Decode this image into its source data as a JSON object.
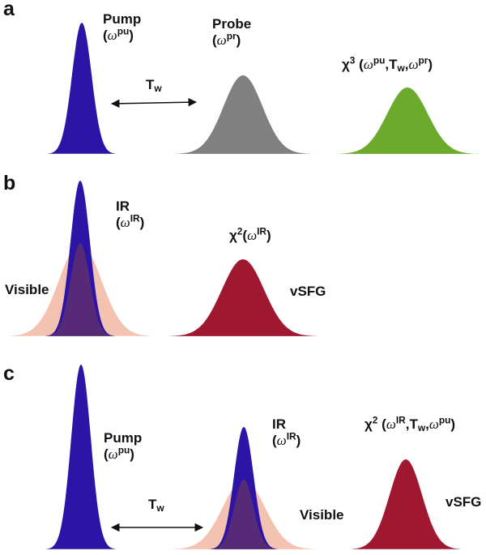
{
  "colors": {
    "pump": "#2B14A6",
    "probe": "#808080",
    "chi3": "#6BAA2B",
    "visible": "#F4C2B0",
    "overlap": "#5B2D73",
    "vsfg": "#A01830"
  },
  "panel_a": {
    "letter": "a",
    "pump_label": "Pump",
    "pump_sym": "ω",
    "pump_sup": "pu",
    "probe_label": "Probe",
    "probe_sym": "ω",
    "probe_sup": "pr",
    "delay_main": "T",
    "delay_sub": "w",
    "chi_main": "χ",
    "chi_order": "3",
    "chi_open": " (",
    "chi_w1": "ω",
    "chi_w1_sup": "pu",
    "chi_sep1": ",T",
    "chi_t_sub": "w",
    "chi_sep2": ",",
    "chi_w2": "ω",
    "chi_w2_sup": "pr",
    "chi_close": ")"
  },
  "panel_b": {
    "letter": "b",
    "ir_label": "IR",
    "ir_sym": "ω",
    "ir_sup": "IR",
    "visible_label": "Visible",
    "chi_main": "χ",
    "chi_order": "2",
    "chi_open": "(",
    "chi_w": "ω",
    "chi_w_sup": "IR",
    "chi_close": ")",
    "vsfg_label": "vSFG"
  },
  "panel_c": {
    "letter": "c",
    "pump_label": "Pump",
    "pump_sym": "ω",
    "pump_sup": "pu",
    "delay_main": "T",
    "delay_sub": "w",
    "ir_label": "IR",
    "ir_sym": "ω",
    "ir_sup": "IR",
    "visible_label": "Visible",
    "chi_main": "χ",
    "chi_order": "2",
    "chi_open": " (",
    "chi_w1": "ω",
    "chi_w1_sup": "IR",
    "chi_sep1": ",T",
    "chi_t_sub": "w",
    "chi_sep2": ",",
    "chi_w2": "ω",
    "chi_w2_sup": "pu",
    "chi_close": ")",
    "vsfg_label": "vSFG"
  }
}
